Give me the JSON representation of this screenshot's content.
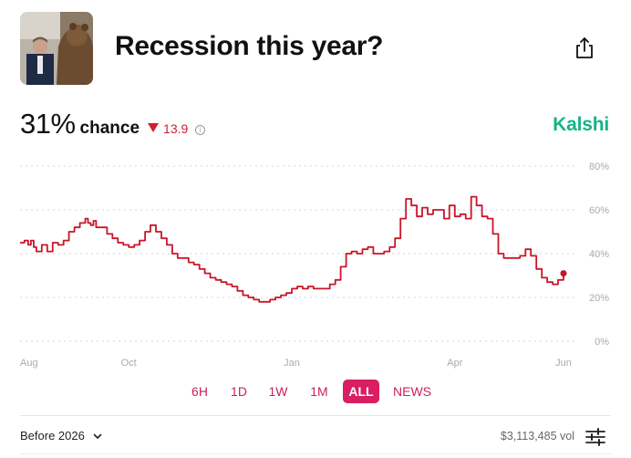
{
  "market": {
    "title": "Recession this year?",
    "probability": "31%",
    "chance_label": "chance",
    "delta": "13.9",
    "brand": "Kalshi"
  },
  "colors": {
    "line": "#c8162a",
    "brand": "#14b486",
    "accent": "#d91e63",
    "delta": "#d11f2f"
  },
  "icons": {
    "share": "share-icon",
    "info": "info-icon",
    "chevron": "chevron-down-icon",
    "settings": "sliders-icon"
  },
  "time_ranges": [
    "6H",
    "1D",
    "1W",
    "1M",
    "ALL",
    "NEWS"
  ],
  "selected_range": "ALL",
  "footer": {
    "selector_label": "Before 2026",
    "volume": "$3,113,485 vol"
  },
  "chart_data": {
    "type": "line",
    "title": "",
    "xlabel": "",
    "ylabel": "",
    "ylim": [
      0,
      80
    ],
    "y_ticks": [
      "80%",
      "60%",
      "40%",
      "20%",
      "0%"
    ],
    "y_tick_values": [
      80,
      60,
      40,
      20,
      0
    ],
    "x_ticks": [
      "Aug",
      "Oct",
      "Jan",
      "Apr",
      "Jun"
    ],
    "x_tick_positions": [
      0,
      2,
      5,
      8,
      10
    ],
    "xlim": [
      0,
      10
    ],
    "grid": true,
    "series": [
      {
        "name": "",
        "x": [
          0,
          0.08,
          0.15,
          0.2,
          0.25,
          0.3,
          0.4,
          0.5,
          0.6,
          0.7,
          0.8,
          0.9,
          1.0,
          1.1,
          1.2,
          1.25,
          1.3,
          1.35,
          1.4,
          1.5,
          1.6,
          1.7,
          1.8,
          1.9,
          2.0,
          2.1,
          2.2,
          2.3,
          2.4,
          2.5,
          2.6,
          2.7,
          2.8,
          2.9,
          3.0,
          3.1,
          3.2,
          3.3,
          3.4,
          3.5,
          3.6,
          3.7,
          3.8,
          3.9,
          4.0,
          4.1,
          4.2,
          4.3,
          4.4,
          4.5,
          4.6,
          4.7,
          4.8,
          4.9,
          5.0,
          5.1,
          5.2,
          5.3,
          5.4,
          5.5,
          5.6,
          5.7,
          5.8,
          5.9,
          6.0,
          6.1,
          6.2,
          6.3,
          6.4,
          6.5,
          6.6,
          6.7,
          6.8,
          6.9,
          7.0,
          7.1,
          7.2,
          7.3,
          7.4,
          7.5,
          7.6,
          7.7,
          7.8,
          7.9,
          8.0,
          8.1,
          8.2,
          8.3,
          8.4,
          8.5,
          8.6,
          8.7,
          8.8,
          8.9,
          9.0,
          9.1,
          9.2,
          9.3,
          9.4,
          9.5,
          9.6,
          9.7,
          9.8,
          9.9,
          10.0
        ],
        "values": [
          45,
          46,
          44,
          46,
          43,
          41,
          44,
          41,
          45,
          44,
          46,
          50,
          52,
          54,
          56,
          54,
          53,
          55,
          52,
          52,
          49,
          47,
          45,
          44,
          43,
          44,
          46,
          50,
          53,
          50,
          47,
          44,
          40,
          38,
          38,
          36,
          35,
          33,
          31,
          29,
          28,
          27,
          26,
          25,
          23,
          21,
          20,
          19,
          18,
          18,
          19,
          20,
          21,
          22,
          24,
          25,
          24,
          25,
          24,
          24,
          24,
          26,
          28,
          34,
          40,
          41,
          40,
          42,
          43,
          40,
          40,
          41,
          43,
          47,
          56,
          65,
          62,
          57,
          61,
          58,
          60,
          60,
          56,
          62,
          57,
          58,
          56,
          66,
          62,
          57,
          56,
          49,
          40,
          38,
          38,
          38,
          39,
          42,
          39,
          33,
          29,
          27,
          26,
          28,
          31
        ]
      }
    ]
  }
}
